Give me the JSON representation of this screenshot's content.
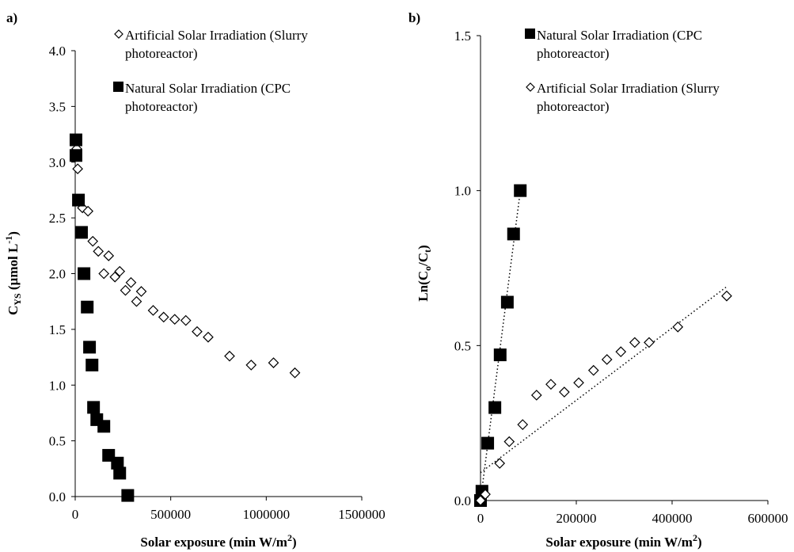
{
  "chart_data": [
    {
      "type": "scatter",
      "panel_label": "a)",
      "xlabel": [
        "Solar exposure (min W/m",
        "2",
        ")"
      ],
      "ylabel": [
        "C",
        "YS",
        " (µmol L",
        "-1",
        ")"
      ],
      "xlim": [
        0,
        1500000
      ],
      "xticks": [
        0,
        500000,
        1000000,
        1500000
      ],
      "ylim": [
        0,
        4
      ],
      "yticks": [
        {
          "value": 0,
          "label": "0.0"
        },
        0.5,
        {
          "value": 1,
          "label": "1.0"
        },
        1.5,
        {
          "value": 2,
          "label": "2.0"
        },
        2.5,
        {
          "value": 3,
          "label": "3.0"
        },
        3.5,
        {
          "value": 4,
          "label": "4.0"
        }
      ],
      "grid": false,
      "series": [
        {
          "name": "Artificial Solar Irradiation (Slurry photoreactor)",
          "marker": "diamond",
          "color": "#000000",
          "x": [
            8000,
            13000,
            38000,
            67000,
            92000,
            121000,
            150000,
            175000,
            208000,
            233000,
            263000,
            292000,
            321000,
            346000,
            408000,
            463000,
            521000,
            579000,
            638000,
            696000,
            808000,
            921000,
            1038000,
            1150000
          ],
          "values": [
            3.12,
            2.94,
            2.59,
            2.56,
            2.29,
            2.2,
            2.0,
            2.16,
            1.97,
            2.02,
            1.85,
            1.92,
            1.75,
            1.84,
            1.67,
            1.61,
            1.59,
            1.58,
            1.48,
            1.43,
            1.26,
            1.18,
            1.2,
            1.11
          ]
        },
        {
          "name": "Natural Solar Irradiation (CPC photoreactor)",
          "marker": "square",
          "color": "#000000",
          "x": [
            4000,
            4000,
            17000,
            33000,
            46000,
            63000,
            75000,
            88000,
            96000,
            113000,
            150000,
            175000,
            221000,
            233000,
            275000
          ],
          "values": [
            3.2,
            3.06,
            2.66,
            2.37,
            2.0,
            1.7,
            1.34,
            1.18,
            0.8,
            0.69,
            0.63,
            0.37,
            0.3,
            0.21,
            0.01
          ]
        }
      ]
    },
    {
      "type": "scatter",
      "panel_label": "b)",
      "xlabel": [
        "Solar exposure (min W/m",
        "2",
        ")"
      ],
      "ylabel": [
        "Ln(C",
        "o",
        "/C",
        "t",
        ")"
      ],
      "xlim": [
        0,
        600000
      ],
      "xticks": [
        0,
        200000,
        400000,
        600000
      ],
      "ylim": [
        0,
        1.5
      ],
      "yticks": [
        {
          "value": 0,
          "label": "0.0"
        },
        0.5,
        {
          "value": 1,
          "label": "1.0"
        },
        1.5
      ],
      "grid": false,
      "series": [
        {
          "name": "Natural Solar Irradiation (CPC photoreactor)",
          "marker": "square",
          "color": "#000000",
          "x": [
            0,
            3000,
            15000,
            30000,
            41000,
            56000,
            69000,
            83000
          ],
          "values": [
            0,
            0.03,
            0.185,
            0.3,
            0.47,
            0.64,
            0.86,
            1.0
          ]
        },
        {
          "name": "Artificial Solar Irradiation (Slurry photoreactor)",
          "marker": "diamond",
          "color": "#000000",
          "x": [
            0,
            10000,
            40000,
            60000,
            88000,
            117000,
            147000,
            175000,
            205000,
            236000,
            264000,
            293000,
            322000,
            352000,
            412000,
            514000
          ],
          "values": [
            0,
            0.02,
            0.12,
            0.19,
            0.245,
            0.34,
            0.375,
            0.35,
            0.38,
            0.42,
            0.455,
            0.48,
            0.51,
            0.51,
            0.56,
            0.66
          ]
        }
      ],
      "trendlines": [
        {
          "x": [
            0,
            84000
          ],
          "values": [
            0.0,
            1.01
          ],
          "color": "#000000"
        },
        {
          "x": [
            0,
            514000
          ],
          "values": [
            0.09,
            0.69
          ],
          "color": "#000000"
        }
      ]
    }
  ]
}
